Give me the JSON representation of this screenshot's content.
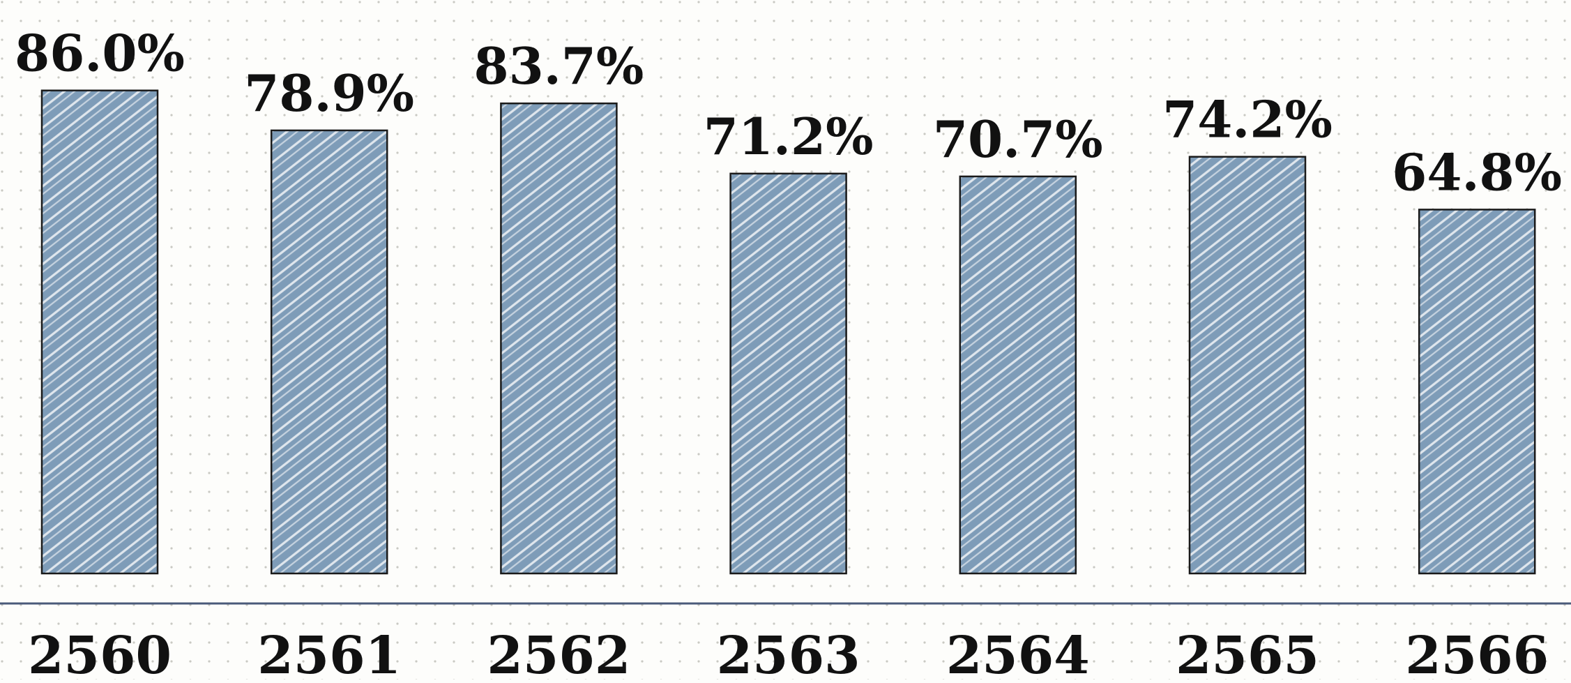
{
  "chart_data": {
    "type": "bar",
    "categories": [
      "2560",
      "2561",
      "2562",
      "2563",
      "2564",
      "2565",
      "2566"
    ],
    "values": [
      86.0,
      78.9,
      83.7,
      71.2,
      70.7,
      74.2,
      64.8
    ],
    "value_labels": [
      "86.0%",
      "78.9%",
      "83.7%",
      "71.2%",
      "70.7%",
      "74.2%",
      "64.8%"
    ],
    "title": "",
    "xlabel": "",
    "ylabel": "",
    "ylim": [
      0,
      100
    ],
    "grid": false,
    "legend": "none"
  },
  "colors": {
    "bar_fill": "#7e9cb8",
    "bar_hatch": "#ffffff",
    "bar_stroke": "#1a1a1a",
    "axis_line": "#4a5a7a",
    "dot_grid": "#c9c9c3",
    "label_text": "#111111",
    "background": "#fdfdfb"
  }
}
